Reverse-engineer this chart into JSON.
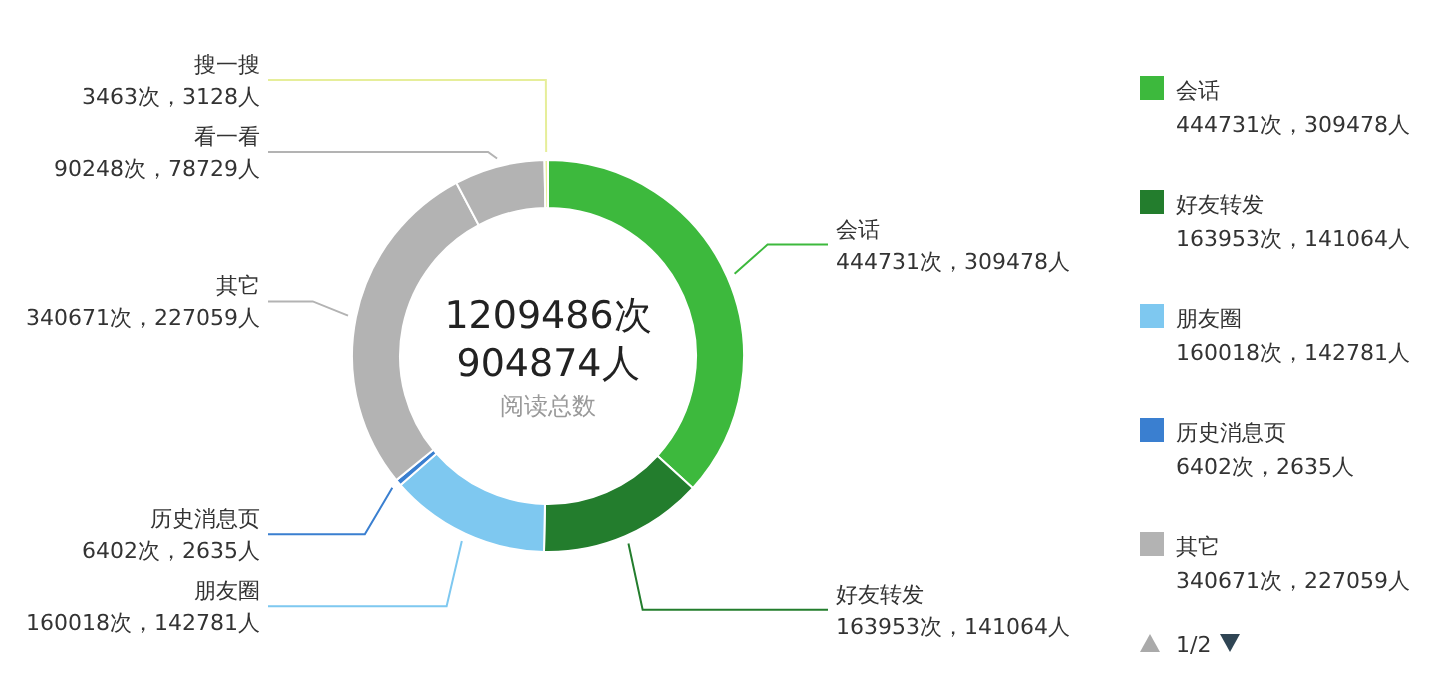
{
  "chart_data": {
    "type": "donut",
    "categories": [
      "会话",
      "好友转发",
      "朋友圈",
      "历史消息页",
      "其它",
      "看一看",
      "搜一搜"
    ],
    "values": [
      444731,
      163953,
      160018,
      6402,
      340671,
      90248,
      3463
    ],
    "colors": [
      "#3db93d",
      "#237d2d",
      "#7ec8f0",
      "#3a7fd0",
      "#b3b3b3",
      "#b3b3b3",
      "#e6ee9a"
    ],
    "value_labels": [
      "444731次，309478人",
      "163953次，141064人",
      "160018次，142781人",
      "6402次，2635人",
      "340671次，227059人",
      "90248次，78729人",
      "3463次，3128人"
    ],
    "annotations": [
      "1209486次",
      "904874人",
      "阅读总数",
      "1/2"
    ],
    "legend": "right"
  }
}
